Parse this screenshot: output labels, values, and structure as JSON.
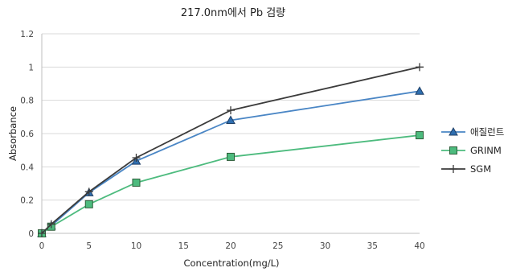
{
  "chart_data": {
    "type": "line",
    "title": "217.0nm에서 Pb 검량",
    "xlabel": "Concentration(mg/L)",
    "ylabel": "Absorbance",
    "xlim": [
      0,
      40
    ],
    "ylim": [
      0,
      1.2
    ],
    "x_ticks": [
      "0",
      "5",
      "10",
      "15",
      "20",
      "25",
      "30",
      "35",
      "40"
    ],
    "y_ticks": [
      "0",
      "0.2",
      "0.4",
      "0.6",
      "0.8",
      "1",
      "1.2"
    ],
    "grid": "horizontal",
    "legend_position": "right",
    "series": [
      {
        "name": "애질런트",
        "marker": "triangle",
        "color": "#4a86c5",
        "x": [
          0,
          1,
          5,
          10,
          20,
          40
        ],
        "y": [
          0.0,
          0.045,
          0.245,
          0.435,
          0.68,
          0.855
        ]
      },
      {
        "name": "GRINM",
        "marker": "square",
        "color": "#4dbb7e",
        "x": [
          0,
          1,
          5,
          10,
          20,
          40
        ],
        "y": [
          0.0,
          0.04,
          0.175,
          0.305,
          0.46,
          0.59
        ]
      },
      {
        "name": "SGM",
        "marker": "plus",
        "color": "#3b3b3b",
        "x": [
          0,
          1,
          5,
          10,
          20,
          40
        ],
        "y": [
          0.0,
          0.055,
          0.25,
          0.455,
          0.74,
          1.0
        ]
      }
    ]
  }
}
